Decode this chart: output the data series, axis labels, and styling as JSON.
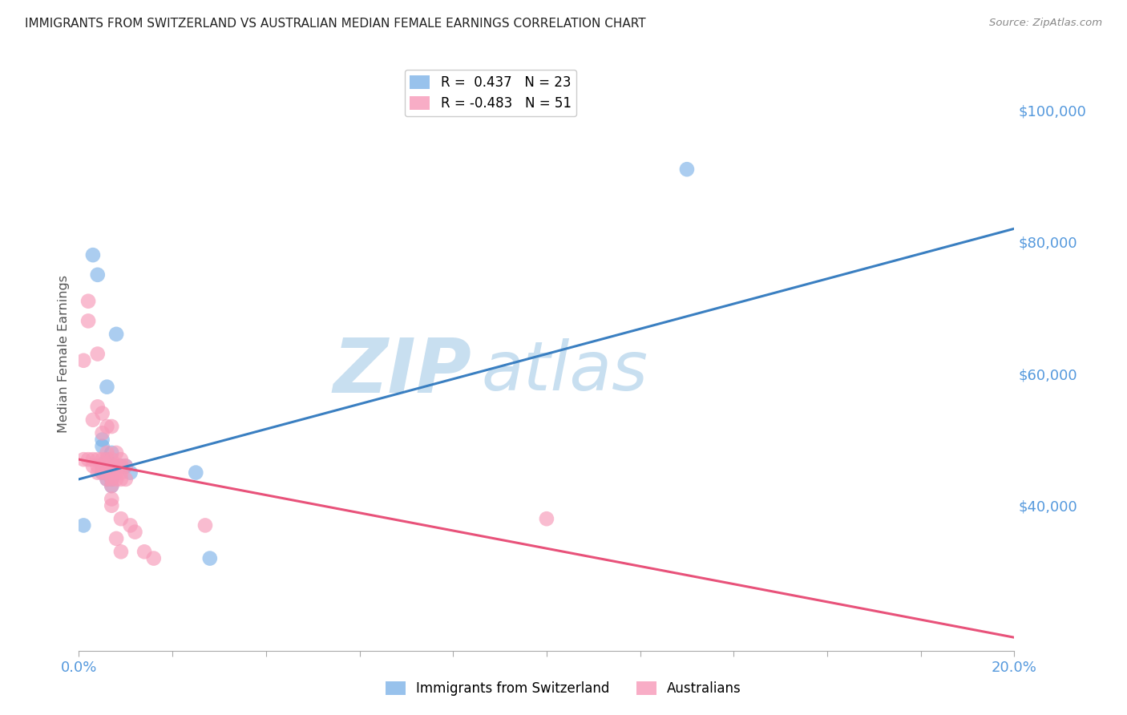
{
  "title": "IMMIGRANTS FROM SWITZERLAND VS AUSTRALIAN MEDIAN FEMALE EARNINGS CORRELATION CHART",
  "source": "Source: ZipAtlas.com",
  "ylabel": "Median Female Earnings",
  "xlim": [
    0.0,
    0.2
  ],
  "ylim": [
    18000,
    108000
  ],
  "blue_R": 0.437,
  "blue_N": 23,
  "pink_R": -0.483,
  "pink_N": 51,
  "legend_label_blue": "Immigrants from Switzerland",
  "legend_label_pink": "Australians",
  "blue_color": "#7EB3E8",
  "pink_color": "#F799B8",
  "trendline_blue": "#3A7FC1",
  "trendline_pink": "#E8527A",
  "background": "#FFFFFF",
  "grid_color": "#DDDDEE",
  "title_color": "#222222",
  "axis_label_color": "#555555",
  "ytick_color": "#5599DD",
  "xtick_color": "#5599DD",
  "watermark_ZIP_color": "#C8DFF0",
  "watermark_atlas_color": "#C8DFF0",
  "blue_dots_x": [
    0.001,
    0.003,
    0.004,
    0.005,
    0.005,
    0.005,
    0.005,
    0.006,
    0.006,
    0.006,
    0.006,
    0.006,
    0.007,
    0.007,
    0.007,
    0.007,
    0.008,
    0.009,
    0.01,
    0.011,
    0.025,
    0.028,
    0.13
  ],
  "blue_dots_y": [
    37000,
    78000,
    75000,
    50000,
    49000,
    46000,
    45000,
    58000,
    47000,
    46000,
    45000,
    44000,
    48000,
    46000,
    44000,
    43000,
    66000,
    46000,
    46000,
    45000,
    45000,
    32000,
    91000
  ],
  "pink_dots_x": [
    0.001,
    0.001,
    0.002,
    0.002,
    0.002,
    0.003,
    0.003,
    0.003,
    0.004,
    0.004,
    0.004,
    0.004,
    0.004,
    0.005,
    0.005,
    0.005,
    0.005,
    0.005,
    0.006,
    0.006,
    0.006,
    0.006,
    0.006,
    0.006,
    0.007,
    0.007,
    0.007,
    0.007,
    0.007,
    0.007,
    0.007,
    0.007,
    0.008,
    0.008,
    0.008,
    0.008,
    0.008,
    0.009,
    0.009,
    0.009,
    0.009,
    0.009,
    0.009,
    0.01,
    0.01,
    0.011,
    0.012,
    0.014,
    0.016,
    0.027,
    0.1
  ],
  "pink_dots_y": [
    62000,
    47000,
    71000,
    68000,
    47000,
    53000,
    47000,
    46000,
    63000,
    55000,
    47000,
    46000,
    45000,
    54000,
    51000,
    47000,
    46000,
    45000,
    52000,
    48000,
    47000,
    46000,
    45000,
    44000,
    52000,
    47000,
    46000,
    45000,
    44000,
    43000,
    41000,
    40000,
    48000,
    46000,
    45000,
    44000,
    35000,
    47000,
    46000,
    45000,
    44000,
    38000,
    33000,
    46000,
    44000,
    37000,
    36000,
    33000,
    32000,
    37000,
    38000
  ],
  "blue_trendline_y0": 44000,
  "blue_trendline_y1": 82000,
  "pink_trendline_y0": 47000,
  "pink_trendline_y1": 20000,
  "ytick_vals": [
    40000,
    60000,
    80000,
    100000
  ],
  "num_xticks": 11
}
